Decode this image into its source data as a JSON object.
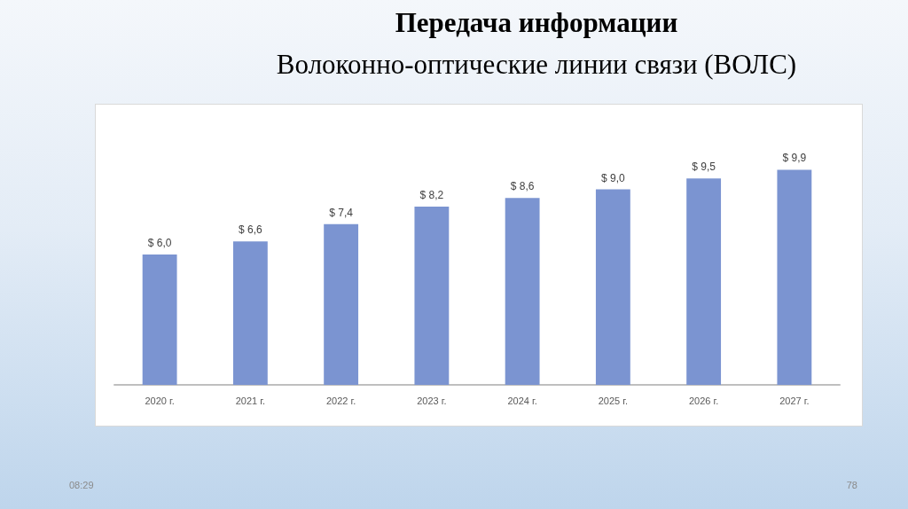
{
  "chart_data": {
    "type": "bar",
    "title": "Передача информации",
    "subtitle": "Волоконно-оптические линии связи (ВОЛС)",
    "categories": [
      "2020 г.",
      "2021 г.",
      "2022 г.",
      "2023 г.",
      "2024 г.",
      "2025 г.",
      "2026 г.",
      "2027 г."
    ],
    "values": [
      6.0,
      6.6,
      7.4,
      8.2,
      8.6,
      9.0,
      9.5,
      9.9
    ],
    "value_labels": [
      "$ 6,0",
      "$ 6,6",
      "$ 7,4",
      "$ 8,2",
      "$ 8,6",
      "$ 9,0",
      "$ 9,5",
      "$ 9,9"
    ],
    "color": "#7b94d1",
    "annotations": [
      "08:29",
      "78"
    ]
  }
}
